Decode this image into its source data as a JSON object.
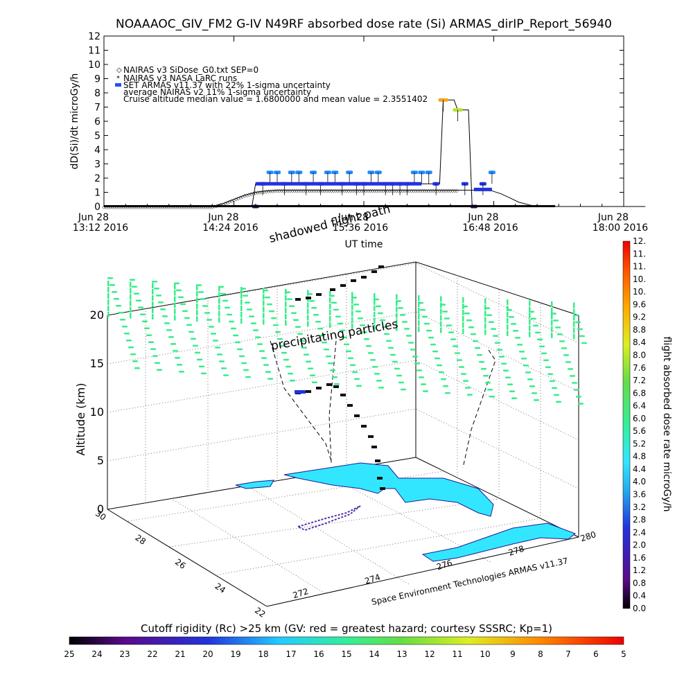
{
  "title": "NOAAAOC_GIV_FM2 G-IV    N49RF  absorbed dose rate (Si) ARMAS_dirIP_Report_56940",
  "chart_data": [
    {
      "type": "line",
      "ylabel": "dD(Si)/dt microGy/h",
      "xlabel": "UT time",
      "ylim": [
        0,
        12
      ],
      "yticks": [
        "0",
        "1",
        "2",
        "3",
        "4",
        "5",
        "6",
        "7",
        "8",
        "9",
        "10",
        "11",
        "12"
      ],
      "xticks": [
        {
          "d": "Jun 28",
          "t": "13:12 2016"
        },
        {
          "d": "Jun 28",
          "t": "14:24 2016"
        },
        {
          "d": "Jun 28",
          "t": "15:36 2016"
        },
        {
          "d": "Jun 28",
          "t": "16:48 2016"
        },
        {
          "d": "Jun 28",
          "t": "18:00 2016"
        }
      ],
      "xlim_minutes": [
        0,
        288
      ],
      "legend": [
        "NAIRAS v3 SiDose_G0.txt SEP=0",
        "NAIRAS v3 NASA LaRC runs",
        "SET ARMAS v11.37 with 22% 1-sigma uncertainty",
        "average NAIRAS v2 11% 1-sigma uncertainty",
        "Cruise altitude median value = 1.6800000 and mean value = 2.3551402"
      ],
      "series": [
        {
          "name": "NAIRAS v3 SiDose_G0.txt SEP=0",
          "x": [
            0,
            60,
            66,
            72,
            78,
            84,
            90,
            96,
            150,
            190,
            200,
            210,
            215,
            220,
            225,
            230,
            236,
            242,
            250,
            290
          ],
          "y": [
            0,
            0,
            0.2,
            0.5,
            0.8,
            1.0,
            1.1,
            1.15,
            1.15,
            1.15,
            1.15,
            1.15,
            1.1,
            0.9,
            0.6,
            0.3,
            0.1,
            0,
            0,
            0
          ]
        },
        {
          "name": "SET ARMAS v11.37 with 22% 1-sigma uncertainty",
          "x": [
            84,
            88,
            92,
            96,
            100,
            104,
            108,
            112,
            116,
            120,
            124,
            128,
            132,
            136,
            140,
            144,
            148,
            152,
            156,
            160,
            164,
            168,
            172,
            176,
            180,
            184,
            188,
            196,
            200,
            205,
            210,
            215
          ],
          "y": [
            0,
            1.6,
            2.4,
            2.4,
            1.6,
            2.4,
            2.4,
            1.6,
            2.4,
            1.6,
            2.4,
            2.4,
            1.6,
            2.4,
            1.6,
            1.6,
            2.4,
            2.4,
            1.6,
            1.6,
            1.6,
            1.6,
            2.4,
            2.4,
            2.4,
            1.6,
            7.5,
            6.8,
            1.6,
            0,
            1.6,
            2.4
          ]
        },
        {
          "name": "fit line",
          "x": [
            0,
            82,
            84,
            176,
            178,
            186,
            188,
            194,
            196,
            202,
            204,
            300
          ],
          "y": [
            0,
            0,
            1.6,
            1.6,
            1.6,
            1.6,
            7.5,
            7.5,
            6.8,
            6.8,
            0,
            0
          ]
        }
      ]
    },
    {
      "type": "scatter",
      "zlabel": "Altitude (km)",
      "zticks": [
        "0",
        "5",
        "10",
        "15",
        "20"
      ],
      "lat_ticks": [
        "30",
        "28",
        "26",
        "24",
        "22"
      ],
      "lon_ticks": [
        "272",
        "274",
        "276",
        "278",
        "280"
      ],
      "footer": "Space Environment Technologies ARMAS v11.37",
      "annotations": [
        "shadowed flight path",
        "precipitating particles"
      ]
    },
    {
      "type": "heatmap",
      "name": "flight absorbed dose rate microGy/h",
      "scale": [
        "0.0",
        "0.4",
        "0.8",
        "1.2",
        "1.6",
        "2.0",
        "2.4",
        "2.8",
        "3.2",
        "3.6",
        "4.0",
        "4.4",
        "4.8",
        "5.2",
        "5.6",
        "6.0",
        "6.4",
        "6.8",
        "7.2",
        "7.6",
        "8.0",
        "8.4",
        "8.8",
        "9.2",
        "9.6",
        "10.",
        "10.",
        "11.",
        "11.",
        "12."
      ]
    },
    {
      "type": "heatmap",
      "name": "Cutoff rigidity (Rc) >25 km (GV: red = greatest hazard; courtesy SSSRC; Kp=1)",
      "scale": [
        "25",
        "24",
        "23",
        "22",
        "21",
        "20",
        "19",
        "18",
        "17",
        "16",
        "15",
        "14",
        "13",
        "12",
        "11",
        "10",
        "9",
        "8",
        "7",
        "6",
        "5"
      ]
    }
  ],
  "colors": {
    "cyan": "#33e6ff",
    "green": "#33ee88",
    "blue": "#2255ee",
    "navy": "#2a0a8a",
    "orange": "#f5a623",
    "lime": "#b8e23a"
  }
}
